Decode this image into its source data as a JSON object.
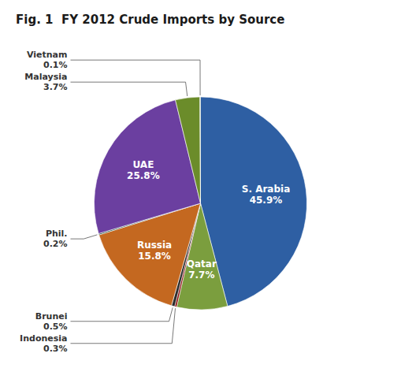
{
  "chart_data": {
    "type": "pie",
    "title": "Fig. 1  FY 2012 Crude Imports by Source",
    "categories": [
      "S. Arabia",
      "Qatar",
      "Indonesia",
      "Brunei",
      "Russia",
      "Phil.",
      "UAE",
      "Malaysia",
      "Vietnam"
    ],
    "values": [
      45.9,
      7.7,
      0.3,
      0.5,
      15.8,
      0.2,
      25.8,
      3.7,
      0.1
    ],
    "value_labels": [
      "45.9%",
      "7.7%",
      "0.3%",
      "0.5%",
      "15.8%",
      "0.2%",
      "25.8%",
      "3.7%",
      "0.1%"
    ],
    "colors": [
      "#2e5fa3",
      "#7b9e3e",
      "#8b0a0a",
      "#2d2d2d",
      "#c46820",
      "#1a4a3a",
      "#6b3fa0",
      "#6b8c2a",
      "#4a7a4a"
    ],
    "data_labels": true
  }
}
